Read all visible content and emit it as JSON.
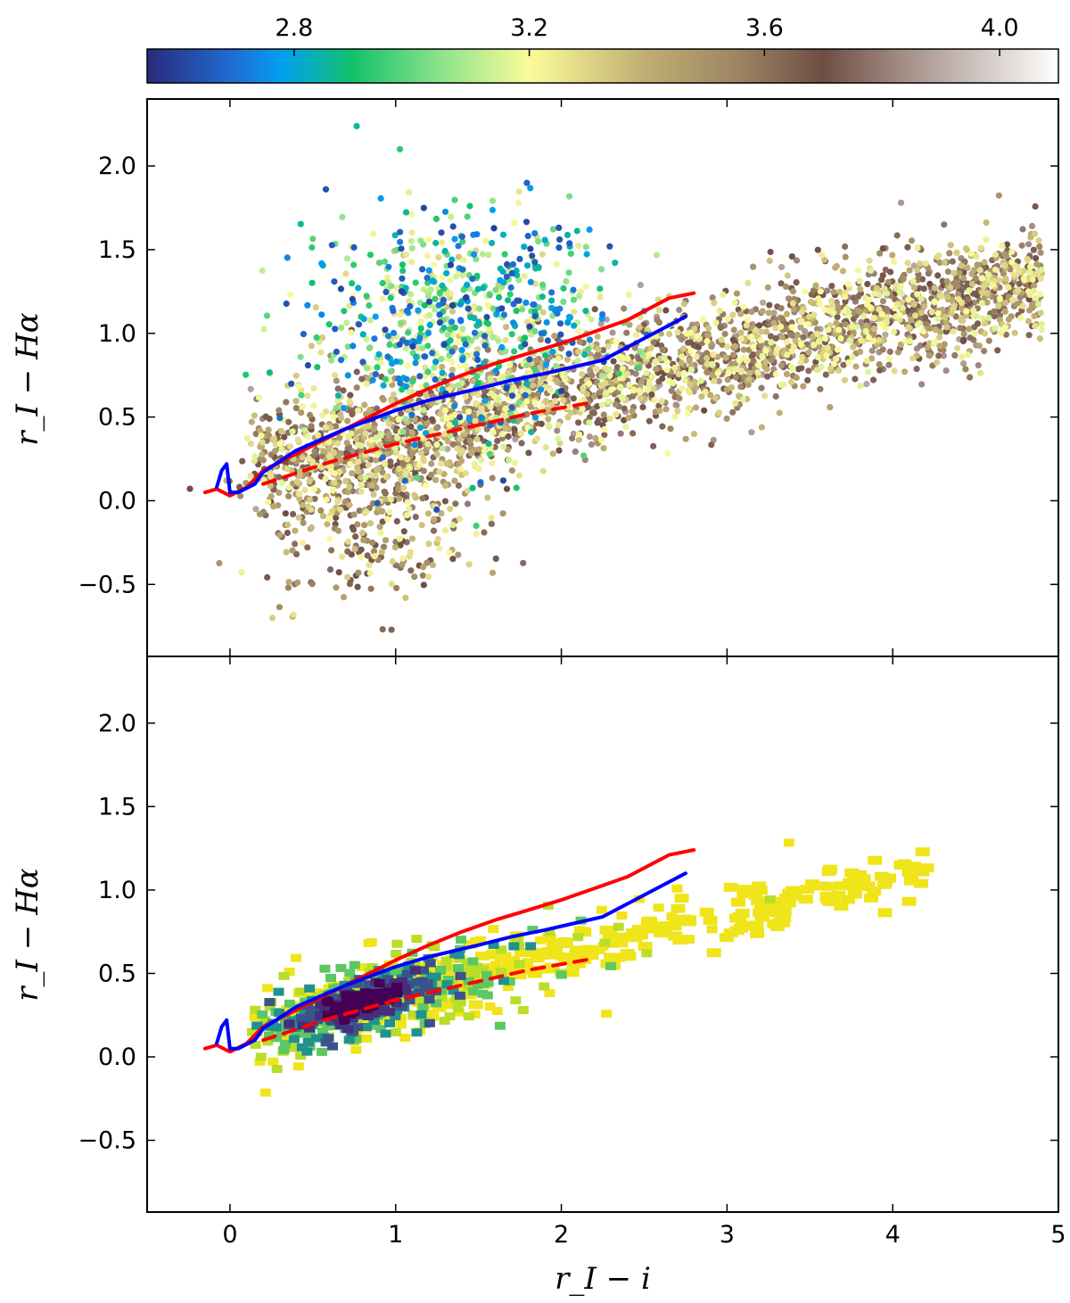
{
  "colorbar": {
    "ticks": [
      "2.8",
      "3.2",
      "3.6",
      "4.0"
    ],
    "tick_values": [
      2.8,
      3.2,
      3.6,
      4.0
    ],
    "range": [
      2.55,
      4.1
    ],
    "stops": [
      {
        "v": 2.55,
        "c": "#2a2a7a"
      },
      {
        "v": 2.7,
        "c": "#1f6fd6"
      },
      {
        "v": 2.78,
        "c": "#00a0f0"
      },
      {
        "v": 2.9,
        "c": "#13c26a"
      },
      {
        "v": 3.05,
        "c": "#8ee38a"
      },
      {
        "v": 3.2,
        "c": "#fbfb9a"
      },
      {
        "v": 3.4,
        "c": "#bfae72"
      },
      {
        "v": 3.55,
        "c": "#9e8664"
      },
      {
        "v": 3.7,
        "c": "#6e4e44"
      },
      {
        "v": 3.85,
        "c": "#a8948c"
      },
      {
        "v": 4.1,
        "c": "#ffffff"
      }
    ]
  },
  "chart_data": [
    {
      "type": "scatter",
      "panel": "top",
      "xlabel": "",
      "ylabel": "r_I − Hα",
      "xlim": [
        -0.5,
        5.0
      ],
      "ylim": [
        -0.93,
        2.4
      ],
      "xticks": [
        "0",
        "1",
        "2",
        "3",
        "4",
        "5"
      ],
      "xtick_values": [
        0,
        1,
        2,
        3,
        4,
        5
      ],
      "show_xtick_labels": false,
      "yticks": [
        "−0.5",
        "0.0",
        "0.5",
        "1.0",
        "1.5",
        "2.0"
      ],
      "ytick_values": [
        -0.5,
        0.0,
        0.5,
        1.0,
        1.5,
        2.0
      ],
      "point_color_encoding": "colorbar",
      "point_clouds": [
        {
          "desc": "main stellar locus",
          "x_range": [
            0.1,
            4.9
          ],
          "y_center_at_x0": 0.18,
          "y_center_at_x4": 1.12,
          "scatter": 0.17,
          "color_range": [
            3.15,
            3.9
          ],
          "count": 2600
        },
        {
          "desc": "emission-line excess",
          "x_center": 1.4,
          "x_sd": 0.42,
          "y_center": 1.05,
          "y_sd": 0.35,
          "color_range": [
            2.6,
            3.35
          ],
          "count": 750
        },
        {
          "desc": "lower spread",
          "x_center": 0.85,
          "x_sd": 0.35,
          "y_center": 0.05,
          "y_sd": 0.28,
          "color_range": [
            3.2,
            3.8
          ],
          "count": 500
        }
      ],
      "series": [
        {
          "color": "#ff0000",
          "style": "solid",
          "x": [
            -0.15,
            -0.08,
            0.0,
            0.1,
            0.2,
            0.4,
            0.6,
            0.8,
            1.0,
            1.2,
            1.4,
            1.6,
            1.8,
            2.0,
            2.2,
            2.4,
            2.65,
            2.8
          ],
          "y": [
            0.05,
            0.07,
            0.03,
            0.08,
            0.18,
            0.28,
            0.38,
            0.48,
            0.58,
            0.67,
            0.75,
            0.82,
            0.88,
            0.94,
            1.01,
            1.08,
            1.21,
            1.24
          ]
        },
        {
          "color": "#0000ff",
          "style": "solid",
          "x": [
            -0.08,
            -0.05,
            -0.02,
            0.0,
            0.05,
            0.15,
            0.2,
            0.4,
            0.7,
            1.0,
            1.2,
            1.5,
            1.7,
            1.9,
            2.25,
            2.5,
            2.75
          ],
          "y": [
            0.08,
            0.18,
            0.22,
            0.05,
            0.05,
            0.1,
            0.17,
            0.3,
            0.43,
            0.54,
            0.6,
            0.67,
            0.72,
            0.76,
            0.84,
            0.97,
            1.1
          ]
        },
        {
          "color": "#ff0000",
          "style": "dashed",
          "x": [
            0.2,
            0.6,
            1.0,
            1.4,
            1.8,
            2.2
          ],
          "y": [
            0.1,
            0.23,
            0.34,
            0.43,
            0.52,
            0.59
          ]
        }
      ]
    },
    {
      "type": "heatmap",
      "panel": "bottom",
      "xlabel": "r_I − i",
      "ylabel": "r_I − Hα",
      "xlim": [
        -0.5,
        5.0
      ],
      "ylim": [
        -0.93,
        2.4
      ],
      "xticks": [
        "0",
        "1",
        "2",
        "3",
        "4",
        "5"
      ],
      "xtick_values": [
        0,
        1,
        2,
        3,
        4,
        5
      ],
      "yticks": [
        "−0.5",
        "0.0",
        "0.5",
        "1.0",
        "1.5",
        "2.0"
      ],
      "ytick_values": [
        -0.5,
        0.0,
        0.5,
        1.0,
        1.5,
        2.0
      ],
      "density_colors": [
        "#f0e41a",
        "#b8de29",
        "#5dc863",
        "#21918c",
        "#3b528b",
        "#472d7b",
        "#440154"
      ],
      "density_peak": {
        "x": 0.75,
        "y": 0.35
      },
      "series": [
        {
          "color": "#ff0000",
          "style": "solid",
          "x": [
            -0.15,
            -0.08,
            0.0,
            0.1,
            0.2,
            0.4,
            0.6,
            0.8,
            1.0,
            1.2,
            1.4,
            1.6,
            1.8,
            2.0,
            2.2,
            2.4,
            2.65,
            2.8
          ],
          "y": [
            0.05,
            0.07,
            0.03,
            0.08,
            0.18,
            0.28,
            0.38,
            0.48,
            0.58,
            0.67,
            0.75,
            0.82,
            0.88,
            0.94,
            1.01,
            1.08,
            1.21,
            1.24
          ]
        },
        {
          "color": "#0000ff",
          "style": "solid",
          "x": [
            -0.08,
            -0.05,
            -0.02,
            0.0,
            0.05,
            0.15,
            0.2,
            0.4,
            0.7,
            1.0,
            1.2,
            1.5,
            1.7,
            1.9,
            2.25,
            2.5,
            2.75
          ],
          "y": [
            0.08,
            0.18,
            0.22,
            0.05,
            0.05,
            0.1,
            0.17,
            0.3,
            0.43,
            0.54,
            0.6,
            0.67,
            0.72,
            0.76,
            0.84,
            0.97,
            1.1
          ]
        },
        {
          "color": "#ff0000",
          "style": "dashed",
          "x": [
            0.2,
            0.6,
            1.0,
            1.4,
            1.8,
            2.2
          ],
          "y": [
            0.1,
            0.23,
            0.34,
            0.43,
            0.52,
            0.59
          ]
        }
      ]
    }
  ]
}
